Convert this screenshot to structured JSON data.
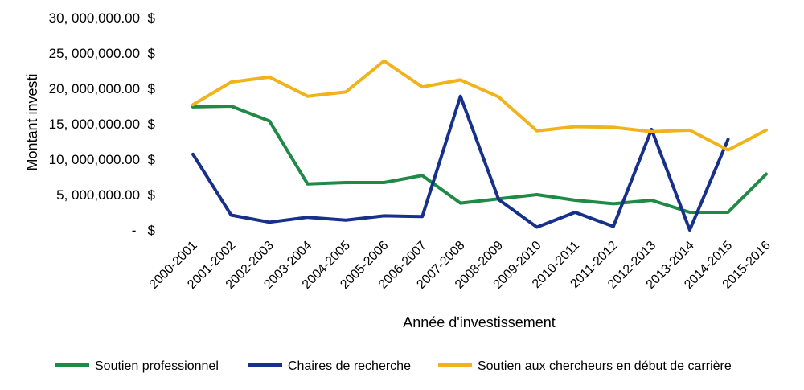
{
  "chart_data": {
    "type": "line",
    "title": "",
    "xlabel": "Année d'investissement",
    "ylabel": "Montant investi",
    "ylim": [
      0,
      30000000
    ],
    "y_ticks": [
      {
        "value": 0,
        "label": "-   $"
      },
      {
        "value": 5000000,
        "label": "5, 000,000.00  $"
      },
      {
        "value": 10000000,
        "label": "10, 000,000.00  $"
      },
      {
        "value": 15000000,
        "label": "15, 000,000.00  $"
      },
      {
        "value": 20000000,
        "label": "20, 000,000.00  $"
      },
      {
        "value": 25000000,
        "label": "25, 000,000.00  $"
      },
      {
        "value": 30000000,
        "label": "30, 000,000.00  $"
      }
    ],
    "grid": false,
    "legend_position": "bottom",
    "categories": [
      "2000-2001",
      "2001-2002",
      "2002-2003",
      "2003-2004",
      "2004-2005",
      "2005-2006",
      "2006-2007",
      "2007-2008",
      "2008-2009",
      "2009-2010",
      "2010-2011",
      "2011-2012",
      "2012-2013",
      "2013-2014",
      "2014-2015",
      "2015-2016"
    ],
    "series": [
      {
        "name": "Soutien professionnel",
        "color": "#1e8a45",
        "values": [
          17400000,
          17500000,
          15400000,
          6500000,
          6700000,
          6700000,
          7700000,
          3800000,
          4400000,
          5000000,
          4200000,
          3700000,
          4200000,
          2500000,
          2500000,
          7900000
        ]
      },
      {
        "name": "Chaires de recherche",
        "color": "#17308a",
        "values": [
          10700000,
          2100000,
          1100000,
          1800000,
          1400000,
          2000000,
          1900000,
          18900000,
          4300000,
          400000,
          2500000,
          500000,
          14200000,
          0,
          12800000,
          null
        ]
      },
      {
        "name": "Soutien aux chercheurs en début de carrière",
        "color": "#f0b31c",
        "values": [
          17700000,
          20900000,
          21600000,
          18900000,
          19500000,
          23900000,
          20200000,
          21200000,
          18800000,
          14000000,
          14600000,
          14500000,
          13900000,
          14100000,
          11300000,
          14100000
        ]
      }
    ]
  }
}
